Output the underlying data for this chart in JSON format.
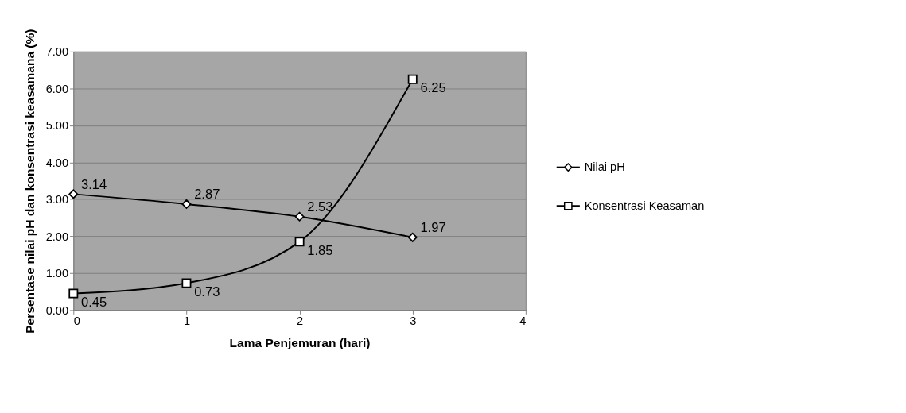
{
  "chart_data": {
    "type": "line",
    "xlabel": "Lama Penjemuran (hari)",
    "ylabel": "Persentase nilai pH dan konsentrasi keasamana (%)",
    "x": [
      0,
      1,
      2,
      3
    ],
    "series": [
      {
        "name": "Nilai pH",
        "color": "#000000",
        "marker": "diamond",
        "values": [
          3.14,
          2.87,
          2.53,
          1.97
        ]
      },
      {
        "name": "Konsentrasi Keasaman",
        "color": "#000000",
        "marker": "square",
        "values": [
          0.45,
          0.73,
          1.85,
          6.25
        ]
      }
    ],
    "xlim": [
      0,
      4
    ],
    "xticks": [
      0,
      1,
      2,
      3,
      4
    ],
    "ylim": [
      0,
      7
    ],
    "yticks": [
      {
        "value": 0,
        "label": "0.00"
      },
      {
        "value": 1,
        "label": "1.00"
      },
      {
        "value": 2,
        "label": "2.00"
      },
      {
        "value": 3,
        "label": "3.00"
      },
      {
        "value": 4,
        "label": "4.00"
      },
      {
        "value": 5,
        "label": "5.00"
      },
      {
        "value": 6,
        "label": "6.00"
      },
      {
        "value": 7,
        "label": "7.00"
      }
    ],
    "grid": "y",
    "legend": "right",
    "data_labels": true,
    "line_style": "solid"
  }
}
